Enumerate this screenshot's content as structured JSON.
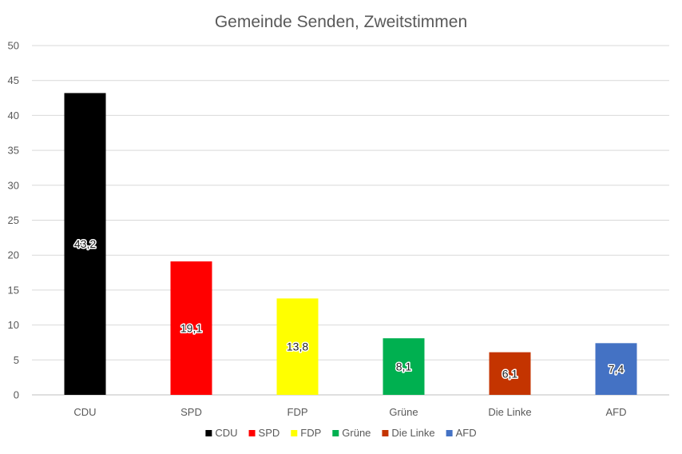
{
  "chart_data": {
    "type": "bar",
    "title": "Gemeinde Senden, Zweitstimmen",
    "categories": [
      "CDU",
      "SPD",
      "FDP",
      "Grüne",
      "Die Linke",
      "AFD"
    ],
    "values": [
      43.2,
      19.1,
      13.8,
      8.1,
      6.1,
      7.4
    ],
    "value_labels": [
      "43,2",
      "19,1",
      "13,8",
      "8,1",
      "6,1",
      "7,4"
    ],
    "colors": [
      "#000000",
      "#ff0000",
      "#ffff00",
      "#00b050",
      "#c43400",
      "#4472c4"
    ],
    "ylim": [
      0,
      50
    ],
    "yticks": [
      "0",
      "5",
      "10",
      "15",
      "20",
      "25",
      "30",
      "35",
      "40",
      "45",
      "50"
    ],
    "xlabel": "",
    "ylabel": "",
    "grid": true,
    "legend": {
      "position": "bottom",
      "entries": [
        "CDU",
        "SPD",
        "FDP",
        "Grüne",
        "Die Linke",
        "AFD"
      ]
    }
  }
}
